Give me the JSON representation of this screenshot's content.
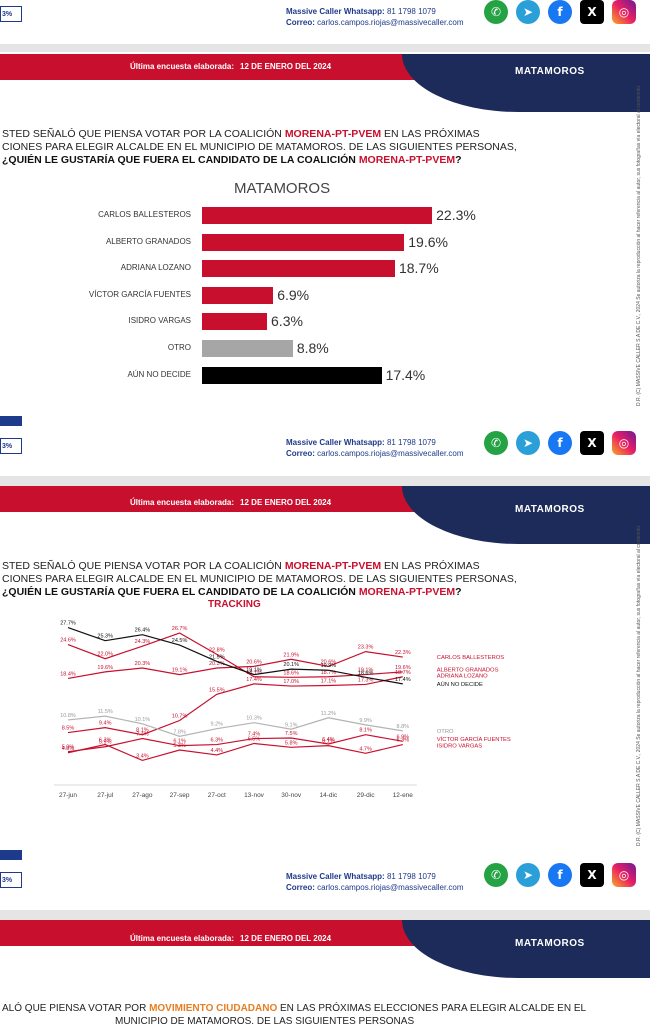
{
  "contact": {
    "whatsapp_label": "Massive Caller Whatsapp:",
    "whatsapp_number": "81 1798 1079",
    "email_label": "Correo:",
    "email": "carlos.campos.riojas@massivecaller.com"
  },
  "social_icons": [
    "whatsapp-icon",
    "telegram-icon",
    "facebook-icon",
    "x-icon",
    "instagram-icon"
  ],
  "banner": {
    "label": "Última encuesta elaborada:",
    "date": "12 DE ENERO DEL 2024",
    "city": "MATAMOROS"
  },
  "corner_badge": "3%",
  "slide1": {
    "question_line1_a": "STED SEÑALÓ QUE PIENSA VOTAR POR LA COALICIÓN ",
    "question_line1_hl": "MORENA-PT-PVEM",
    "question_line1_b": " EN LAS PRÓXIMAS",
    "question_line2": "CIONES PARA ELEGIR ALCALDE EN EL MUNICIPIO DE MATAMOROS. DE LAS SIGUIENTES PERSONAS,",
    "question_line3_a": "¿QUIÉN LE GUSTARÍA QUE FUERA EL CANDIDATO DE LA COALICIÓN ",
    "question_line3_hl": "MORENA-PT-PVEM",
    "question_line3_b": "?",
    "side_note": "D.R. (C) MASSIVE CALLER S.A DE C.V., 2024 Se autoriza la reproducción al hacer referencia al autor, sus fotografías vía electoral al contenido."
  },
  "chart_data": [
    {
      "type": "bar",
      "title": "MATAMOROS",
      "categories": [
        "CARLOS BALLESTEROS",
        "ALBERTO GRANADOS",
        "ADRIANA LOZANO",
        "VÍCTOR GARCÍA FUENTES",
        "ISIDRO VARGAS",
        "OTRO",
        "AÚN NO DECIDE"
      ],
      "values": [
        22.3,
        19.6,
        18.7,
        6.9,
        6.3,
        8.8,
        17.4
      ],
      "value_labels": [
        "22.3%",
        "19.6%",
        "18.7%",
        "6.9%",
        "6.3%",
        "8.8%",
        "17.4%"
      ],
      "colors": [
        "#c8102e",
        "#c8102e",
        "#c8102e",
        "#c8102e",
        "#c8102e",
        "#a6a6a6",
        "#000000"
      ],
      "xlim": [
        0,
        25
      ]
    },
    {
      "type": "line",
      "title": "TRACKING",
      "x": [
        "27-jun",
        "27-jul",
        "27-ago",
        "27-sep",
        "27-oct",
        "13-nov",
        "30-nov",
        "14-dic",
        "29-dic",
        "12-ene"
      ],
      "ylim": [
        0,
        30
      ],
      "series": [
        {
          "name": "CARLOS BALLESTEROS",
          "color": "#c8102e",
          "values": [
            18.4,
            19.6,
            20.3,
            19.1,
            20.3,
            20.6,
            21.9,
            20.6,
            23.3,
            22.3
          ]
        },
        {
          "name": "ALBERTO GRANADOS",
          "color": "#c8102e",
          "values": [
            24.6,
            22.0,
            24.3,
            26.7,
            22.8,
            18.7,
            18.6,
            18.7,
            19.1,
            19.6
          ]
        },
        {
          "name": "ADRIANA LOZANO",
          "color": "#c8102e",
          "values": [
            8.5,
            9.4,
            8.1,
            10.7,
            15.5,
            17.4,
            17.0,
            17.1,
            17.3,
            18.7
          ]
        },
        {
          "name": "AÚN NO DECIDE",
          "color": "#111111",
          "values": [
            27.7,
            25.3,
            26.4,
            24.5,
            21.5,
            19.1,
            20.1,
            19.9,
            18.6,
            17.4
          ]
        },
        {
          "name": "OTRO",
          "color": "#b3b3b3",
          "values": [
            10.8,
            11.5,
            10.1,
            7.8,
            9.2,
            10.3,
            9.1,
            11.2,
            9.9,
            8.8
          ]
        },
        {
          "name": "VÍCTOR GARCÍA FUENTES",
          "color": "#c8102e",
          "values": [
            5.0,
            5.9,
            7.4,
            6.1,
            6.3,
            7.4,
            7.5,
            6.4,
            8.1,
            6.9
          ]
        },
        {
          "name": "ISIDRO VARGAS",
          "color": "#c8102e",
          "values": [
            4.8,
            6.3,
            3.4,
            5.3,
            4.4,
            6.5,
            5.8,
            6.1,
            4.7,
            6.3
          ]
        }
      ],
      "legend_labels": [
        "CARLOS BALLESTEROS",
        "ALBERTO GRANADOS",
        "ADRIANA LOZANO",
        "AÚN NO DECIDE",
        "OTRO",
        "VÍCTOR GARCÍA FUENTES",
        "ISIDRO VARGAS"
      ]
    }
  ],
  "slide3": {
    "question_a": "ALÓ QUE PIENSA VOTAR POR ",
    "question_hl": "MOVIMIENTO CIUDADANO",
    "question_b": " EN LAS PRÓXIMAS ELECCIONES PARA ELEGIR ALCALDE EN EL",
    "question_line2": "MUNICIPIO DE MATAMOROS. DE LAS SIGUIENTES PERSONAS"
  }
}
